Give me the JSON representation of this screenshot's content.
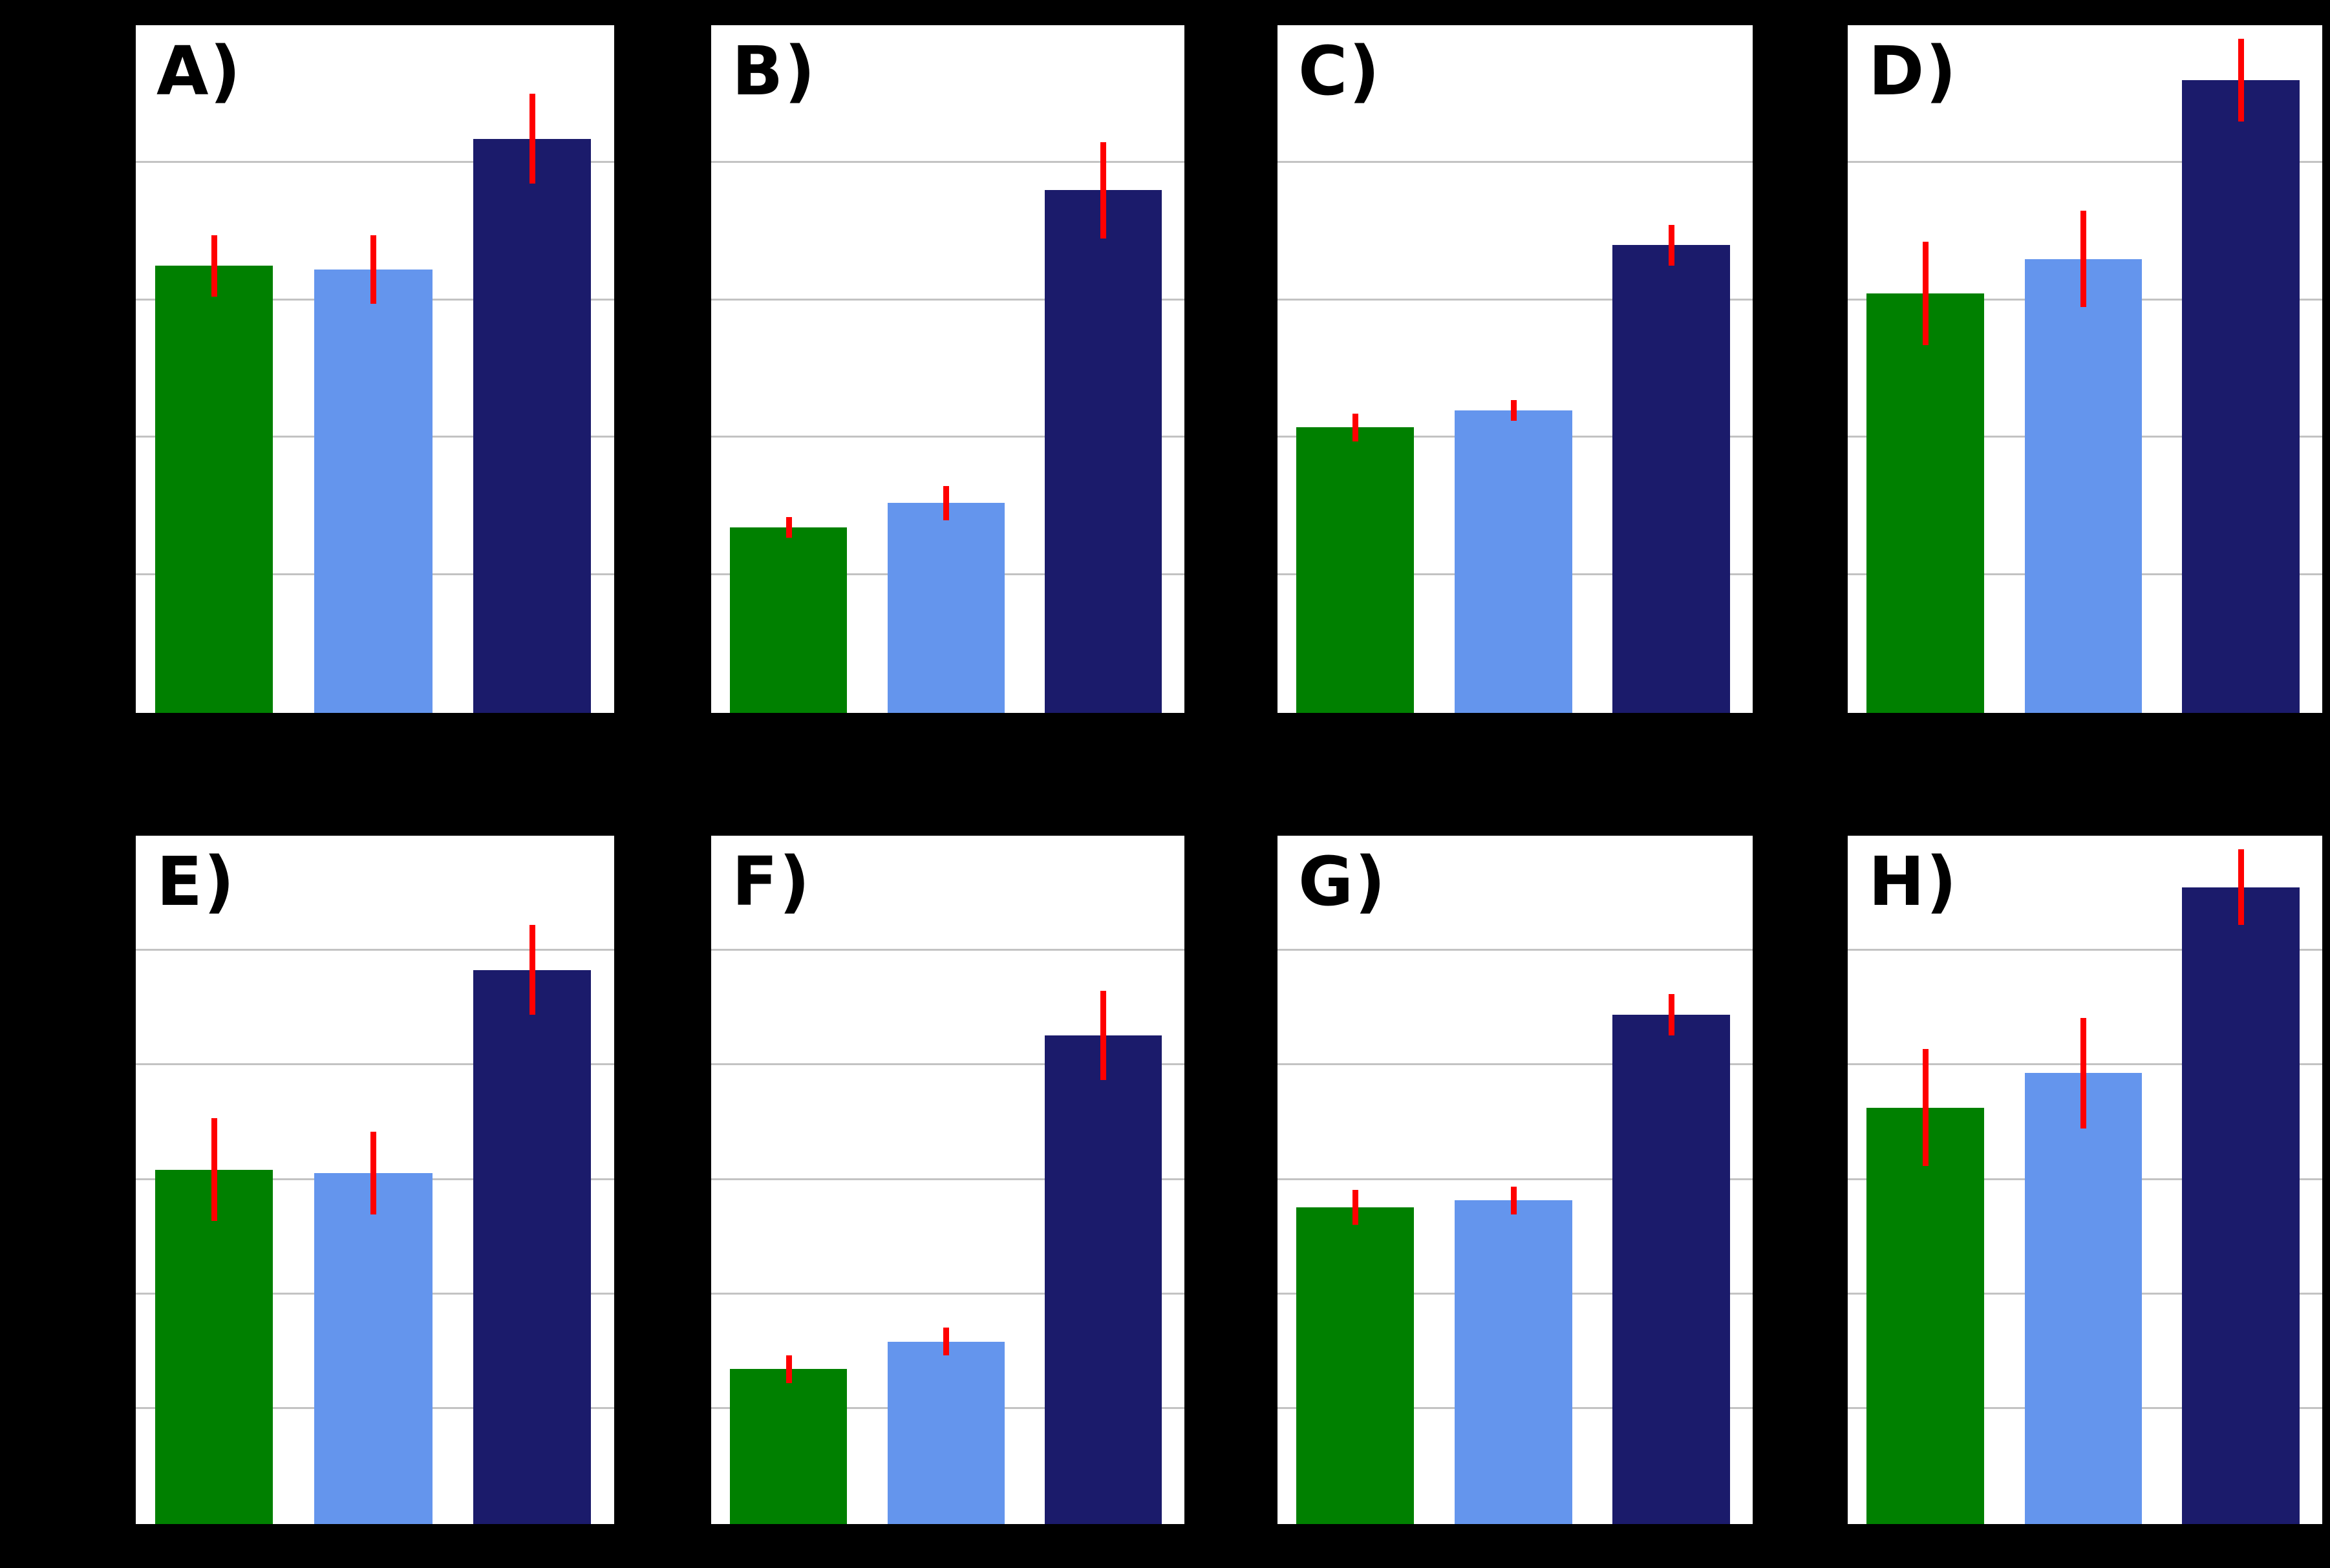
{
  "figure": {
    "background_color": "#000000",
    "panel_background": "#ffffff",
    "panel_border_color": "#000000",
    "gridline_color": "#c3c3c3",
    "error_bar_color": "#ff0000",
    "series_colors": {
      "green": "#008000",
      "light-blue": "#6495ed",
      "dark-navy": "#1b1b6b"
    },
    "visible_text": [
      "A)",
      "B)",
      "C)",
      "D)",
      "E)",
      "F)",
      "G)",
      "H)"
    ],
    "axis_text_visible": false,
    "legend_visible": false
  },
  "chart_data": [
    {
      "panel": "A)",
      "type": "bar",
      "row": 1,
      "categories": [
        "green",
        "light-blue",
        "dark-navy"
      ],
      "values": [
        65,
        64.5,
        83.5
      ],
      "errors": [
        4.5,
        5,
        6.5
      ],
      "ylim": [
        0,
        100
      ],
      "gridlines": [
        20,
        40,
        60,
        80
      ],
      "value_scale": "percent_of_axis",
      "title": "",
      "xlabel": "",
      "ylabel": ""
    },
    {
      "panel": "B)",
      "type": "bar",
      "row": 1,
      "categories": [
        "green",
        "light-blue",
        "dark-navy"
      ],
      "values": [
        27,
        30.5,
        76
      ],
      "errors": [
        1.5,
        2.5,
        7
      ],
      "ylim": [
        0,
        100
      ],
      "gridlines": [
        20,
        40,
        60,
        80
      ],
      "value_scale": "percent_of_axis",
      "title": "",
      "xlabel": "",
      "ylabel": ""
    },
    {
      "panel": "C)",
      "type": "bar",
      "row": 1,
      "categories": [
        "green",
        "light-blue",
        "dark-navy"
      ],
      "values": [
        41.5,
        44,
        68
      ],
      "errors": [
        2,
        1.5,
        3
      ],
      "ylim": [
        0,
        100
      ],
      "gridlines": [
        20,
        40,
        60,
        80
      ],
      "value_scale": "percent_of_axis",
      "title": "",
      "xlabel": "",
      "ylabel": ""
    },
    {
      "panel": "D)",
      "type": "bar",
      "row": 1,
      "categories": [
        "green",
        "light-blue",
        "dark-navy"
      ],
      "values": [
        61,
        66,
        92
      ],
      "errors": [
        7.5,
        7,
        6
      ],
      "ylim": [
        0,
        100
      ],
      "gridlines": [
        20,
        40,
        60,
        80
      ],
      "value_scale": "percent_of_axis",
      "title": "",
      "xlabel": "",
      "ylabel": ""
    },
    {
      "panel": "E)",
      "type": "bar",
      "row": 2,
      "categories": [
        "green",
        "light-blue",
        "dark-navy"
      ],
      "values": [
        51.5,
        51,
        80.5
      ],
      "errors": [
        7.5,
        6,
        6.5
      ],
      "ylim": [
        0,
        100
      ],
      "gridlines": [
        16.67,
        33.33,
        50,
        66.67,
        83.33
      ],
      "value_scale": "percent_of_axis",
      "title": "",
      "xlabel": "",
      "ylabel": ""
    },
    {
      "panel": "F)",
      "type": "bar",
      "row": 2,
      "categories": [
        "green",
        "light-blue",
        "dark-navy"
      ],
      "values": [
        22.5,
        26.5,
        71
      ],
      "errors": [
        2,
        2,
        6.5
      ],
      "ylim": [
        0,
        100
      ],
      "gridlines": [
        16.67,
        33.33,
        50,
        66.67,
        83.33
      ],
      "value_scale": "percent_of_axis",
      "title": "",
      "xlabel": "",
      "ylabel": ""
    },
    {
      "panel": "G)",
      "type": "bar",
      "row": 2,
      "categories": [
        "green",
        "light-blue",
        "dark-navy"
      ],
      "values": [
        46,
        47,
        74
      ],
      "errors": [
        2.5,
        2,
        3
      ],
      "ylim": [
        0,
        100
      ],
      "gridlines": [
        16.67,
        33.33,
        50,
        66.67,
        83.33
      ],
      "value_scale": "percent_of_axis",
      "title": "",
      "xlabel": "",
      "ylabel": ""
    },
    {
      "panel": "H)",
      "type": "bar",
      "row": 2,
      "categories": [
        "green",
        "light-blue",
        "dark-navy"
      ],
      "values": [
        60.5,
        65.5,
        92.5
      ],
      "errors": [
        8.5,
        8,
        5.5
      ],
      "ylim": [
        0,
        100
      ],
      "gridlines": [
        16.67,
        33.33,
        50,
        66.67,
        83.33
      ],
      "value_scale": "percent_of_axis",
      "title": "",
      "xlabel": "",
      "ylabel": ""
    }
  ]
}
